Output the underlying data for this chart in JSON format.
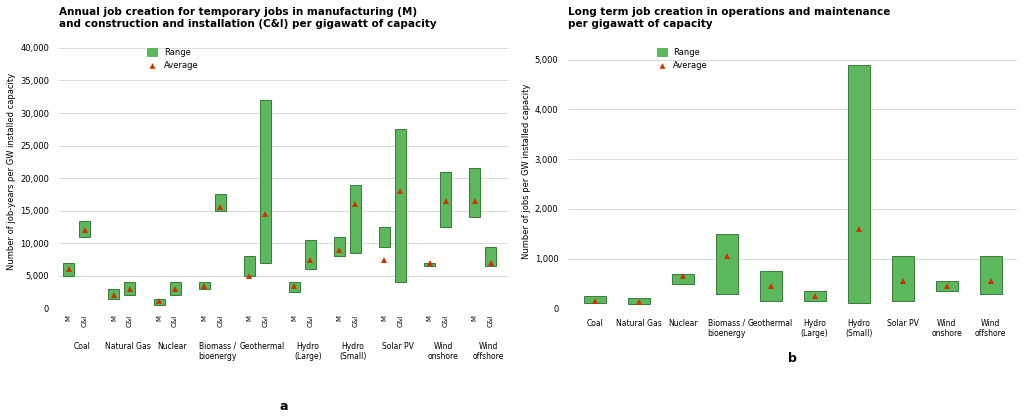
{
  "left_title": "Annual job creation for temporary jobs in manufacturing (M)\nand construction and installation (C&I) per gigawatt of capacity",
  "right_title": "Long term job creation in operations and maintenance\nper gigawatt of capacity",
  "left_ylabel": "Number of job-years per GW installed capacity",
  "right_ylabel": "Number of jobs per GW installed capacity",
  "left_xlabel": "a",
  "right_xlabel": "b",
  "categories": [
    "Coal",
    "Natural Gas",
    "Nuclear",
    "Biomass /\nbioenergy",
    "Geothermal",
    "Hydro\n(Large)",
    "Hydro\n(Small)",
    "Solar PV",
    "Wind\nonshore",
    "Wind\noffshore"
  ],
  "left_data": {
    "M_low": [
      5000,
      1500,
      500,
      3000,
      5000,
      2500,
      8000,
      9500,
      6500,
      14000
    ],
    "M_high": [
      7000,
      3000,
      1500,
      4000,
      8000,
      4000,
      11000,
      12500,
      7000,
      21500
    ],
    "M_avg": [
      6000,
      2000,
      1200,
      3500,
      5000,
      3500,
      9000,
      7500,
      7000,
      16500
    ],
    "CI_low": [
      11000,
      2000,
      2000,
      15000,
      7000,
      6000,
      8500,
      4000,
      12500,
      6500
    ],
    "CI_high": [
      13500,
      4000,
      4000,
      17500,
      32000,
      10500,
      19000,
      27500,
      21000,
      9500
    ],
    "CI_avg": [
      12000,
      3000,
      3000,
      15500,
      14500,
      7500,
      16000,
      18000,
      16500,
      7000
    ]
  },
  "right_data": {
    "low": [
      100,
      80,
      500,
      300,
      150,
      150,
      100,
      150,
      350,
      300
    ],
    "high": [
      250,
      200,
      700,
      1500,
      750,
      350,
      4900,
      1050,
      550,
      1050
    ],
    "avg": [
      150,
      130,
      650,
      1050,
      450,
      250,
      1600,
      550,
      450,
      550
    ]
  },
  "bar_color": "#5CB85C",
  "marker_color": "#CC3300",
  "bar_edge_color": "#3A7A3A",
  "background_color": "#FFFFFF",
  "grid_color": "#CCCCCC",
  "left_ylim": [
    0,
    42000
  ],
  "left_yticks": [
    0,
    5000,
    10000,
    15000,
    20000,
    25000,
    30000,
    35000,
    40000
  ],
  "right_ylim": [
    0,
    5500
  ],
  "right_yticks": [
    0,
    1000,
    2000,
    3000,
    4000,
    5000
  ]
}
